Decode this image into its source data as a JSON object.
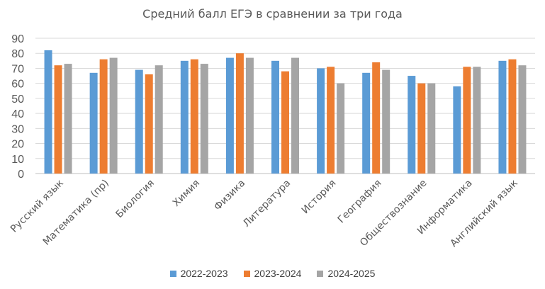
{
  "chart_data": {
    "type": "bar",
    "title": "Средний балл ЕГЭ в сравнении за три года",
    "categories": [
      "Русский язык",
      "Математика (пр)",
      "Биология",
      "Химия",
      "Физика",
      "Литература",
      "История",
      "География",
      "Обществознание",
      "Информатика",
      "Английский язык"
    ],
    "series": [
      {
        "name": "2022-2023",
        "color": "#5B9BD5",
        "values": [
          82,
          67,
          69,
          75,
          77,
          75,
          70,
          67,
          65,
          58,
          75
        ]
      },
      {
        "name": "2023-2024",
        "color": "#ED7D31",
        "values": [
          72,
          76,
          66,
          76,
          80,
          68,
          71,
          74,
          60,
          71,
          76
        ]
      },
      {
        "name": "2024-2025",
        "color": "#A5A5A5",
        "values": [
          73,
          77,
          72,
          73,
          77,
          77,
          60,
          69,
          60,
          71,
          72
        ]
      }
    ],
    "ylim": [
      0,
      90
    ],
    "yticks": [
      0,
      10,
      20,
      30,
      40,
      50,
      60,
      70,
      80,
      90
    ],
    "grid": true,
    "legend_position": "bottom"
  }
}
